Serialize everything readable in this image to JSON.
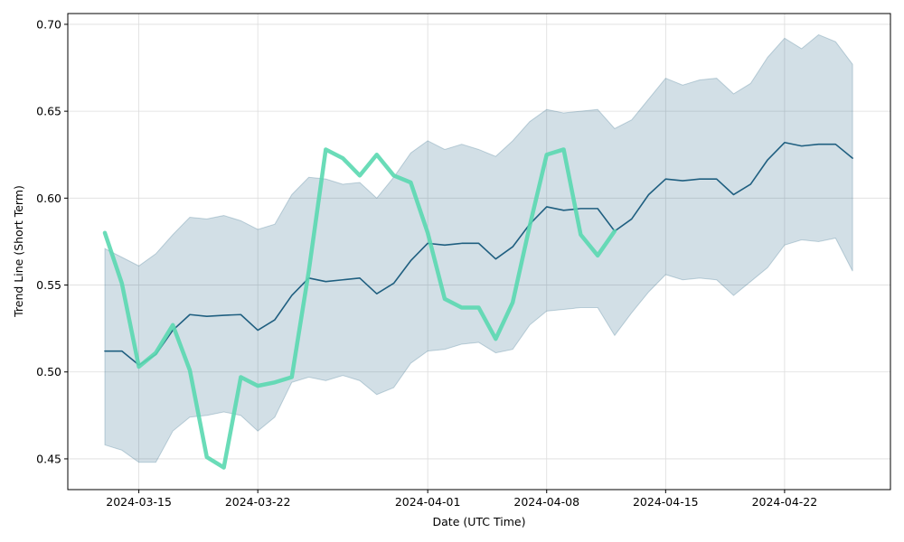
{
  "chart_data": {
    "type": "line",
    "xlabel": "Date (UTC Time)",
    "ylabel": "Trend Line (Short Term)",
    "x": [
      "2024-03-13",
      "2024-03-14",
      "2024-03-15",
      "2024-03-16",
      "2024-03-17",
      "2024-03-18",
      "2024-03-19",
      "2024-03-20",
      "2024-03-21",
      "2024-03-22",
      "2024-03-23",
      "2024-03-24",
      "2024-03-25",
      "2024-03-26",
      "2024-03-27",
      "2024-03-28",
      "2024-03-29",
      "2024-03-30",
      "2024-03-31",
      "2024-04-01",
      "2024-04-02",
      "2024-04-03",
      "2024-04-04",
      "2024-04-05",
      "2024-04-06",
      "2024-04-07",
      "2024-04-08",
      "2024-04-09",
      "2024-04-10",
      "2024-04-11",
      "2024-04-12",
      "2024-04-13",
      "2024-04-14",
      "2024-04-15",
      "2024-04-16",
      "2024-04-17",
      "2024-04-18",
      "2024-04-19",
      "2024-04-20",
      "2024-04-21",
      "2024-04-22",
      "2024-04-23",
      "2024-04-24",
      "2024-04-25",
      "2024-04-26"
    ],
    "band": {
      "color": "#1f5f80",
      "upper": [
        0.571,
        0.566,
        0.561,
        0.568,
        0.579,
        0.589,
        0.588,
        0.59,
        0.587,
        0.582,
        0.585,
        0.602,
        0.612,
        0.611,
        0.608,
        0.609,
        0.6,
        0.612,
        0.626,
        0.633,
        0.628,
        0.631,
        0.628,
        0.624,
        0.633,
        0.644,
        0.651,
        0.649,
        0.65,
        0.651,
        0.64,
        0.645,
        0.657,
        0.669,
        0.665,
        0.668,
        0.669,
        0.66,
        0.666,
        0.681,
        0.692,
        0.686,
        0.694,
        0.69,
        0.677
      ],
      "lower": [
        0.458,
        0.455,
        0.448,
        0.448,
        0.466,
        0.474,
        0.475,
        0.477,
        0.475,
        0.466,
        0.474,
        0.494,
        0.497,
        0.495,
        0.498,
        0.495,
        0.487,
        0.491,
        0.505,
        0.512,
        0.513,
        0.516,
        0.517,
        0.511,
        0.513,
        0.527,
        0.535,
        0.536,
        0.537,
        0.537,
        0.521,
        0.534,
        0.546,
        0.556,
        0.553,
        0.554,
        0.553,
        0.544,
        0.552,
        0.56,
        0.573,
        0.576,
        0.575,
        0.577,
        0.558
      ]
    },
    "series": [
      {
        "color": "#1f5f80",
        "width": 1.6,
        "values": [
          0.512,
          0.512,
          0.504,
          0.51,
          0.524,
          0.533,
          0.532,
          0.5326,
          0.533,
          0.524,
          0.53,
          0.544,
          0.554,
          0.552,
          0.553,
          0.554,
          0.545,
          0.551,
          0.564,
          0.574,
          0.573,
          0.574,
          0.574,
          0.565,
          0.572,
          0.585,
          0.595,
          0.593,
          0.594,
          0.594,
          0.581,
          0.588,
          0.602,
          0.611,
          0.61,
          0.611,
          0.611,
          0.602,
          0.608,
          0.622,
          0.632,
          0.63,
          0.631,
          0.631,
          0.623
        ]
      },
      {
        "color": "#5ad8b0",
        "width": 4.5,
        "values": [
          0.58,
          0.551,
          0.503,
          0.511,
          0.527,
          0.501,
          0.451,
          0.445,
          0.497,
          0.492,
          0.494,
          0.497,
          0.558,
          0.628,
          0.623,
          0.613,
          0.625,
          0.613,
          0.609,
          0.58,
          0.542,
          0.537,
          0.537,
          0.519,
          0.54,
          0.584,
          0.625,
          0.628,
          0.579,
          0.567,
          0.581,
          null,
          null,
          null,
          null,
          null,
          null,
          null,
          null,
          null,
          null,
          null,
          null,
          null,
          null
        ]
      }
    ],
    "xlim": [
      "2024-03-10T19:40",
      "2024-04-28T05:30"
    ],
    "xticks": [
      "2024-03-15",
      "2024-03-22",
      "2024-04-01",
      "2024-04-08",
      "2024-04-15",
      "2024-04-22"
    ],
    "ylim": [
      0.4323,
      0.7062
    ],
    "yticks": [
      0.45,
      {
        "value": 0.5,
        "label": "0.50"
      },
      0.55,
      {
        "value": 0.6,
        "label": "0.60"
      },
      0.65,
      {
        "value": 0.7,
        "label": "0.70"
      }
    ],
    "grid": true
  }
}
